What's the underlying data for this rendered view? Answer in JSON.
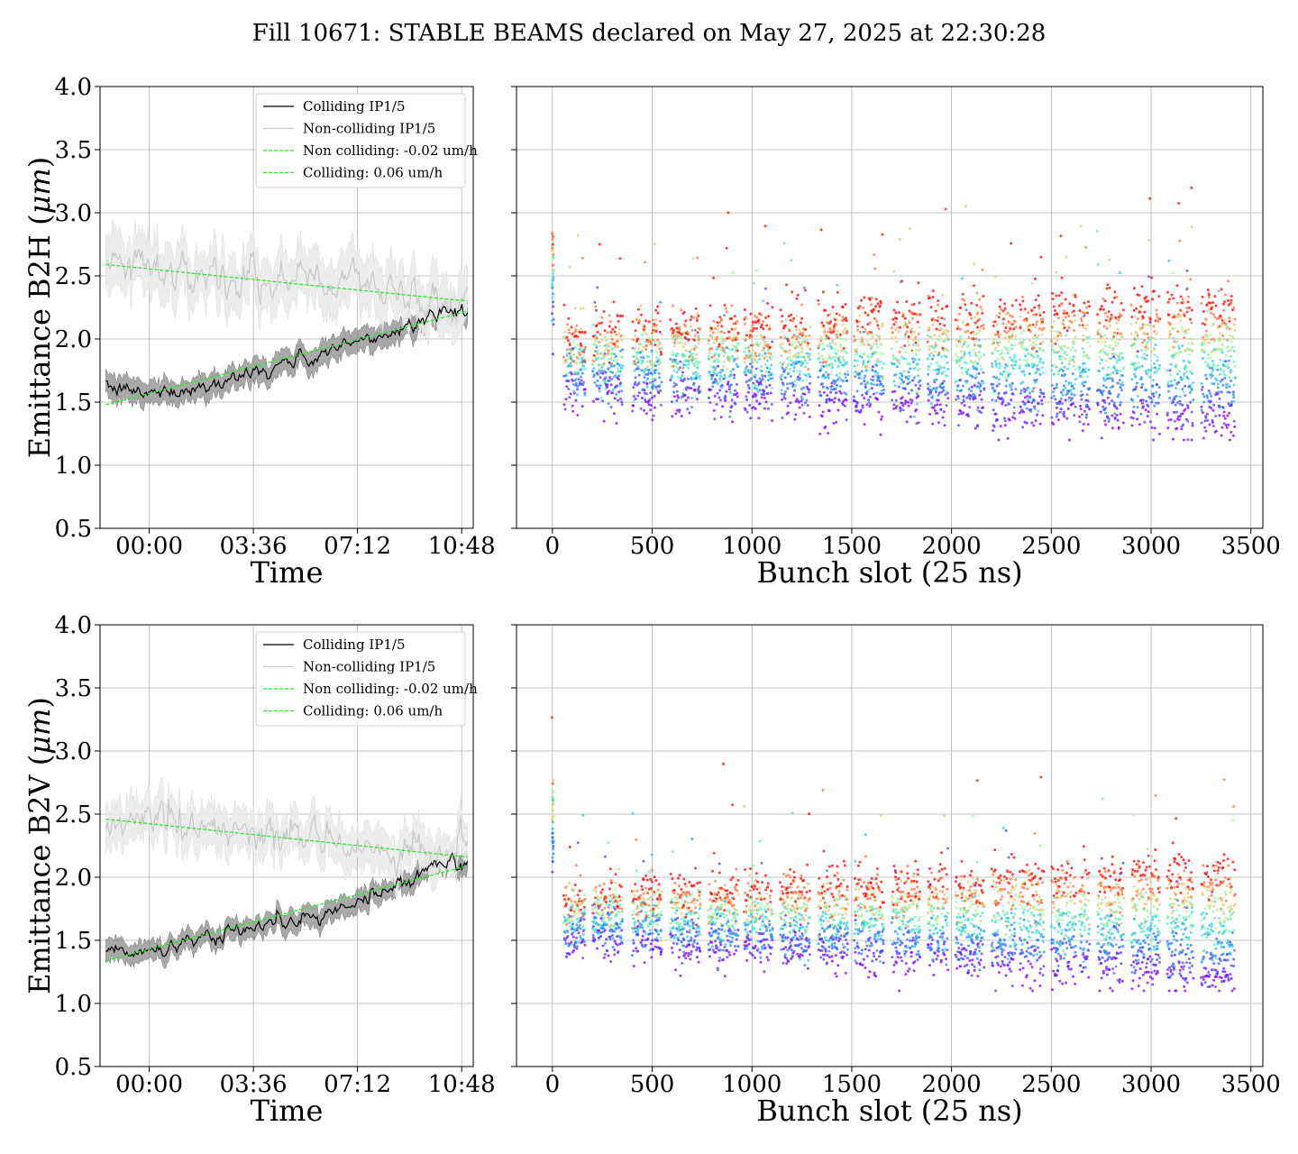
{
  "figure": {
    "title": "Fill 10671: STABLE BEAMS declared on May 27, 2025 at 22:30:28"
  },
  "colors": {
    "colliding": "#000000",
    "colliding_band": "#8c8c8c",
    "non_colliding": "#c8c8c8",
    "non_colliding_band": "#ebebeb",
    "fit": "#22ee22",
    "grid": "#b0b0b0"
  },
  "chart_data": [
    {
      "id": "b2h-time",
      "type": "line",
      "ylabel": "Emittance B2H (μm)",
      "ylabel_main": "Emittance B2H (",
      "ylabel_unit": "μm",
      "ylabel_close": ")",
      "xlabel": "Time",
      "x_unit": "hours",
      "xlim": [
        -1.7,
        11.2
      ],
      "ylim": [
        0.5,
        4.0
      ],
      "xticks": [
        0,
        3.6,
        7.2,
        10.8
      ],
      "xtick_labels": [
        "00:00",
        "03:36",
        "07:12",
        "10:48"
      ],
      "yticks": [
        0.5,
        1.0,
        1.5,
        2.0,
        2.5,
        3.0,
        3.5,
        4.0
      ],
      "ytick_labels": [
        "0.5",
        "1.0",
        "1.5",
        "2.0",
        "2.5",
        "3.0",
        "3.5",
        "4.0"
      ],
      "grid": true,
      "legend_position": "top-right",
      "legend": [
        "Colliding IP1/5",
        "Non-colliding IP1/5",
        "Non colliding: -0.02 um/h",
        "Colliding: 0.06 um/h"
      ],
      "series": [
        {
          "name": "Colliding IP1/5",
          "x": [
            -1.5,
            0,
            1,
            2,
            3,
            4,
            5,
            6,
            7,
            8,
            9,
            10,
            11
          ],
          "values": [
            1.6,
            1.57,
            1.6,
            1.64,
            1.7,
            1.76,
            1.82,
            1.88,
            1.95,
            2.02,
            2.12,
            2.22,
            2.24
          ],
          "band": 0.09
        },
        {
          "name": "Non-colliding IP1/5",
          "x": [
            -1.5,
            0,
            1,
            2,
            3,
            4,
            5,
            6,
            7,
            8,
            9,
            10,
            11
          ],
          "values": [
            2.58,
            2.6,
            2.54,
            2.55,
            2.5,
            2.52,
            2.45,
            2.48,
            2.42,
            2.4,
            2.36,
            2.3,
            2.32
          ],
          "band": 0.2
        }
      ],
      "fits": [
        {
          "name": "Non colliding: -0.02 um/h",
          "x": [
            -1.5,
            11
          ],
          "values": [
            2.59,
            2.3
          ]
        },
        {
          "name": "Colliding: 0.06 um/h",
          "x": [
            -1.5,
            11
          ],
          "values": [
            1.48,
            2.22
          ]
        }
      ]
    },
    {
      "id": "b2h-bunch",
      "type": "scatter",
      "xlabel": "Bunch slot (25 ns)",
      "xlim": [
        -180,
        3560
      ],
      "ylim": [
        0.5,
        4.0
      ],
      "xticks": [
        0,
        500,
        1000,
        1500,
        2000,
        2500,
        3000,
        3500
      ],
      "xtick_labels": [
        "0",
        "500",
        "1000",
        "1500",
        "2000",
        "2500",
        "3000",
        "3500"
      ],
      "yticks": [
        0.5,
        1.0,
        1.5,
        2.0,
        2.5,
        3.0,
        3.5,
        4.0
      ],
      "grid": true,
      "colormap": "rainbow",
      "trains": [
        [
          55,
          165
        ],
        [
          200,
          350
        ],
        [
          400,
          545
        ],
        [
          590,
          740
        ],
        [
          780,
          930
        ],
        [
          960,
          1100
        ],
        [
          1140,
          1290
        ],
        [
          1330,
          1480
        ],
        [
          1510,
          1660
        ],
        [
          1700,
          1840
        ],
        [
          1880,
          1980
        ],
        [
          2020,
          2160
        ],
        [
          2200,
          2320
        ],
        [
          2340,
          2460
        ],
        [
          2500,
          2620
        ],
        [
          2640,
          2690
        ],
        [
          2730,
          2860
        ],
        [
          2900,
          3040
        ],
        [
          3080,
          3210
        ],
        [
          3250,
          3420
        ]
      ],
      "value_range": [
        1.2,
        3.2
      ],
      "level_start": [
        1.6,
        2.05
      ],
      "level_end": [
        1.35,
        2.3
      ],
      "spread": 0.1
    },
    {
      "id": "b2v-time",
      "type": "line",
      "ylabel": "Emittance B2V (μm)",
      "ylabel_main": "Emittance B2V (",
      "ylabel_unit": "μm",
      "ylabel_close": ")",
      "xlabel": "Time",
      "x_unit": "hours",
      "xlim": [
        -1.7,
        11.2
      ],
      "ylim": [
        0.5,
        4.0
      ],
      "xticks": [
        0,
        3.6,
        7.2,
        10.8
      ],
      "xtick_labels": [
        "00:00",
        "03:36",
        "07:12",
        "10:48"
      ],
      "yticks": [
        0.5,
        1.0,
        1.5,
        2.0,
        2.5,
        3.0,
        3.5,
        4.0
      ],
      "ytick_labels": [
        "0.5",
        "1.0",
        "1.5",
        "2.0",
        "2.5",
        "3.0",
        "3.5",
        "4.0"
      ],
      "grid": true,
      "legend_position": "top-right",
      "legend": [
        "Colliding IP1/5",
        "Non-colliding IP1/5",
        "Non colliding: -0.02 um/h",
        "Colliding: 0.06 um/h"
      ],
      "series": [
        {
          "name": "Colliding IP1/5",
          "x": [
            -1.5,
            0,
            1,
            2,
            3,
            4,
            5,
            6,
            7,
            8,
            9,
            10,
            11
          ],
          "values": [
            1.4,
            1.42,
            1.47,
            1.52,
            1.57,
            1.62,
            1.66,
            1.72,
            1.8,
            1.88,
            1.97,
            2.1,
            2.15
          ],
          "band": 0.08
        },
        {
          "name": "Non-colliding IP1/5",
          "x": [
            -1.5,
            0,
            1,
            2,
            3,
            4,
            5,
            6,
            7,
            8,
            9,
            10,
            11
          ],
          "values": [
            2.35,
            2.45,
            2.42,
            2.4,
            2.38,
            2.34,
            2.3,
            2.28,
            2.25,
            2.22,
            2.2,
            2.18,
            2.17
          ],
          "band": 0.16
        }
      ],
      "fits": [
        {
          "name": "Non colliding: -0.02 um/h",
          "x": [
            -1.5,
            11
          ],
          "values": [
            2.46,
            2.16
          ]
        },
        {
          "name": "Colliding: 0.06 um/h",
          "x": [
            -1.5,
            11
          ],
          "values": [
            1.34,
            2.09
          ]
        }
      ]
    },
    {
      "id": "b2v-bunch",
      "type": "scatter",
      "xlabel": "Bunch slot (25 ns)",
      "xlim": [
        -180,
        3560
      ],
      "ylim": [
        0.5,
        4.0
      ],
      "xticks": [
        0,
        500,
        1000,
        1500,
        2000,
        2500,
        3000,
        3500
      ],
      "xtick_labels": [
        "0",
        "500",
        "1000",
        "1500",
        "2000",
        "2500",
        "3000",
        "3500"
      ],
      "yticks": [
        0.5,
        1.0,
        1.5,
        2.0,
        2.5,
        3.0,
        3.5,
        4.0
      ],
      "grid": true,
      "colormap": "rainbow",
      "trains": [
        [
          55,
          165
        ],
        [
          200,
          350
        ],
        [
          400,
          545
        ],
        [
          590,
          740
        ],
        [
          780,
          930
        ],
        [
          960,
          1100
        ],
        [
          1140,
          1290
        ],
        [
          1330,
          1480
        ],
        [
          1510,
          1660
        ],
        [
          1700,
          1840
        ],
        [
          1880,
          1980
        ],
        [
          2020,
          2160
        ],
        [
          2200,
          2320
        ],
        [
          2340,
          2460
        ],
        [
          2500,
          2620
        ],
        [
          2640,
          2690
        ],
        [
          2730,
          2860
        ],
        [
          2900,
          3040
        ],
        [
          3080,
          3210
        ],
        [
          3250,
          3420
        ]
      ],
      "value_range": [
        1.1,
        2.9
      ],
      "level_start": [
        1.52,
        1.85
      ],
      "level_end": [
        1.2,
        2.05
      ],
      "spread": 0.09
    }
  ]
}
